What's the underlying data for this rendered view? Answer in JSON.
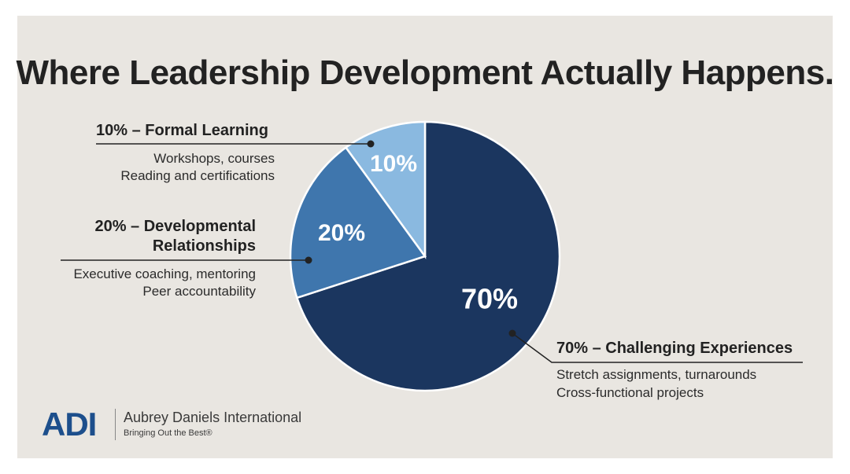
{
  "title": "Where Leadership Development Actually Happens.",
  "chart_data": {
    "type": "pie",
    "title": "Where Leadership Development Actually Happens.",
    "slices": [
      {
        "label": "70%",
        "value": 70,
        "color": "#1b365f"
      },
      {
        "label": "20%",
        "value": 20,
        "color": "#3f76ad"
      },
      {
        "label": "10%",
        "value": 10,
        "color": "#8ab9e0"
      }
    ]
  },
  "callouts": {
    "formal": {
      "title": "10% – Formal Learning",
      "line1": "Workshops, courses",
      "line2": "Reading and certifications"
    },
    "relationships": {
      "title1": "20% – Developmental",
      "title2": "Relationships",
      "line1": "Executive coaching, mentoring",
      "line2": "Peer accountability"
    },
    "experiences": {
      "title": "70% – Challenging Experiences",
      "line1": "Stretch assignments, turnarounds",
      "line2": "Cross-functional projects"
    }
  },
  "logo": {
    "mark": "ADI",
    "name": "Aubrey Daniels International",
    "tagline": "Bringing Out the Best®"
  }
}
